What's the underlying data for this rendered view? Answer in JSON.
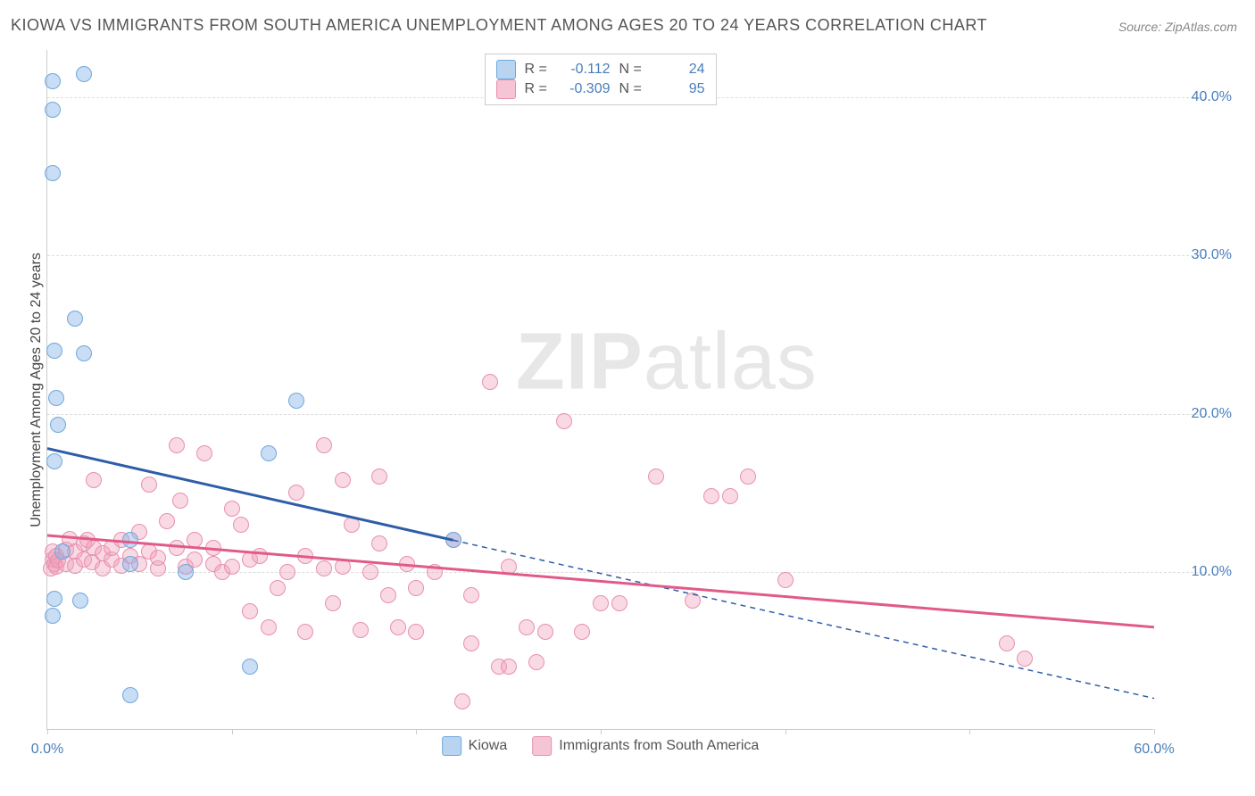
{
  "chart": {
    "type": "scatter",
    "title": "KIOWA VS IMMIGRANTS FROM SOUTH AMERICA UNEMPLOYMENT AMONG AGES 20 TO 24 YEARS CORRELATION CHART",
    "source": "Source: ZipAtlas.com",
    "ylabel": "Unemployment Among Ages 20 to 24 years",
    "watermark": "ZIPatlas",
    "background_color": "#ffffff",
    "grid_color": "#dddddd",
    "axis_color": "#cccccc",
    "xlim": [
      0,
      60
    ],
    "ylim": [
      0,
      43
    ],
    "xtick_positions": [
      0,
      10,
      20,
      30,
      40,
      50,
      60
    ],
    "xtick_labels": [
      "0.0%",
      "",
      "",
      "",
      "",
      "",
      "60.0%"
    ],
    "ytick_positions": [
      10,
      20,
      30,
      40
    ],
    "ytick_labels": [
      "10.0%",
      "20.0%",
      "30.0%",
      "40.0%"
    ],
    "series": [
      {
        "name": "Kiowa",
        "marker_color_fill": "rgba(135,180,230,0.45)",
        "marker_color_stroke": "#6fa8dc",
        "swatch_fill": "#b8d4f0",
        "swatch_stroke": "#6fa8dc",
        "line_color": "#2e5da8",
        "R": "-0.112",
        "N": "24",
        "trend": {
          "x1": 0,
          "y1": 17.8,
          "x_solid_end": 22,
          "y_solid_end": 12.0,
          "x2": 60,
          "y2": 2.0
        },
        "points": [
          [
            0.3,
            41.0
          ],
          [
            2.0,
            41.5
          ],
          [
            0.3,
            39.2
          ],
          [
            0.3,
            35.2
          ],
          [
            1.5,
            26.0
          ],
          [
            0.4,
            24.0
          ],
          [
            2.0,
            23.8
          ],
          [
            0.5,
            21.0
          ],
          [
            0.6,
            19.3
          ],
          [
            0.4,
            17.0
          ],
          [
            12.0,
            17.5
          ],
          [
            13.5,
            20.8
          ],
          [
            4.5,
            12.0
          ],
          [
            22.0,
            12.0
          ],
          [
            4.5,
            10.5
          ],
          [
            0.4,
            8.3
          ],
          [
            1.8,
            8.2
          ],
          [
            7.5,
            10.0
          ],
          [
            0.3,
            7.2
          ],
          [
            0.8,
            11.3
          ],
          [
            11.0,
            4.0
          ],
          [
            4.5,
            2.2
          ]
        ]
      },
      {
        "name": "Immigrants from South America",
        "marker_color_fill": "rgba(240,160,185,0.40)",
        "marker_color_stroke": "#e890b0",
        "swatch_fill": "#f5c4d5",
        "swatch_stroke": "#e890b0",
        "line_color": "#e05a8a",
        "R": "-0.309",
        "N": "95",
        "trend": {
          "x1": 0,
          "y1": 12.3,
          "x_solid_end": 60,
          "y_solid_end": 6.5,
          "x2": 60,
          "y2": 6.5
        },
        "points": [
          [
            0.2,
            10.2
          ],
          [
            0.3,
            10.8
          ],
          [
            0.3,
            11.3
          ],
          [
            0.4,
            10.5
          ],
          [
            0.5,
            11.0
          ],
          [
            0.5,
            10.3
          ],
          [
            0.6,
            10.7
          ],
          [
            1.0,
            11.4
          ],
          [
            1.0,
            10.5
          ],
          [
            1.2,
            12.1
          ],
          [
            1.5,
            10.4
          ],
          [
            1.5,
            11.3
          ],
          [
            2.0,
            10.8
          ],
          [
            2.0,
            11.8
          ],
          [
            2.2,
            12.0
          ],
          [
            2.4,
            10.6
          ],
          [
            2.5,
            11.5
          ],
          [
            2.5,
            15.8
          ],
          [
            3.0,
            11.2
          ],
          [
            3.0,
            10.2
          ],
          [
            3.5,
            10.8
          ],
          [
            3.5,
            11.5
          ],
          [
            4.0,
            12.0
          ],
          [
            4.0,
            10.4
          ],
          [
            4.5,
            11.0
          ],
          [
            5.0,
            10.5
          ],
          [
            5.0,
            12.5
          ],
          [
            5.5,
            15.5
          ],
          [
            5.5,
            11.3
          ],
          [
            6.0,
            10.2
          ],
          [
            6.0,
            10.9
          ],
          [
            6.5,
            13.2
          ],
          [
            7.0,
            18.0
          ],
          [
            7.0,
            11.5
          ],
          [
            7.2,
            14.5
          ],
          [
            7.5,
            10.3
          ],
          [
            8.0,
            10.8
          ],
          [
            8.0,
            12.0
          ],
          [
            8.5,
            17.5
          ],
          [
            9.0,
            10.5
          ],
          [
            9.0,
            11.5
          ],
          [
            9.5,
            10.0
          ],
          [
            10.0,
            10.3
          ],
          [
            10.0,
            14.0
          ],
          [
            10.5,
            13.0
          ],
          [
            11.0,
            10.8
          ],
          [
            11.0,
            7.5
          ],
          [
            11.5,
            11.0
          ],
          [
            12.0,
            6.5
          ],
          [
            12.5,
            9.0
          ],
          [
            13.0,
            10.0
          ],
          [
            13.5,
            15.0
          ],
          [
            14.0,
            11.0
          ],
          [
            14.0,
            6.2
          ],
          [
            15.0,
            18.0
          ],
          [
            15.0,
            10.2
          ],
          [
            15.5,
            8.0
          ],
          [
            16.0,
            15.8
          ],
          [
            16.0,
            10.3
          ],
          [
            16.5,
            13.0
          ],
          [
            17.0,
            6.3
          ],
          [
            17.5,
            10.0
          ],
          [
            18.0,
            11.8
          ],
          [
            18.0,
            16.0
          ],
          [
            18.5,
            8.5
          ],
          [
            19.0,
            6.5
          ],
          [
            19.5,
            10.5
          ],
          [
            20.0,
            9.0
          ],
          [
            20.0,
            6.2
          ],
          [
            21.0,
            10.0
          ],
          [
            22.0,
            12.0
          ],
          [
            23.0,
            8.5
          ],
          [
            23.0,
            5.5
          ],
          [
            24.0,
            22.0
          ],
          [
            24.5,
            4.0
          ],
          [
            25.0,
            10.3
          ],
          [
            25.0,
            4.0
          ],
          [
            26.0,
            6.5
          ],
          [
            26.5,
            4.3
          ],
          [
            27.0,
            6.2
          ],
          [
            28.0,
            19.5
          ],
          [
            29.0,
            6.2
          ],
          [
            30.0,
            8.0
          ],
          [
            31.0,
            8.0
          ],
          [
            33.0,
            16.0
          ],
          [
            35.0,
            8.2
          ],
          [
            36.0,
            14.8
          ],
          [
            37.0,
            14.8
          ],
          [
            38.0,
            16.0
          ],
          [
            40.0,
            9.5
          ],
          [
            52.0,
            5.5
          ],
          [
            53.0,
            4.5
          ],
          [
            22.5,
            1.8
          ]
        ]
      }
    ],
    "legend_bottom": [
      {
        "swatch_fill": "#b8d4f0",
        "swatch_stroke": "#6fa8dc",
        "label": "Kiowa"
      },
      {
        "swatch_fill": "#f5c4d5",
        "swatch_stroke": "#e890b0",
        "label": "Immigrants from South America"
      }
    ]
  }
}
